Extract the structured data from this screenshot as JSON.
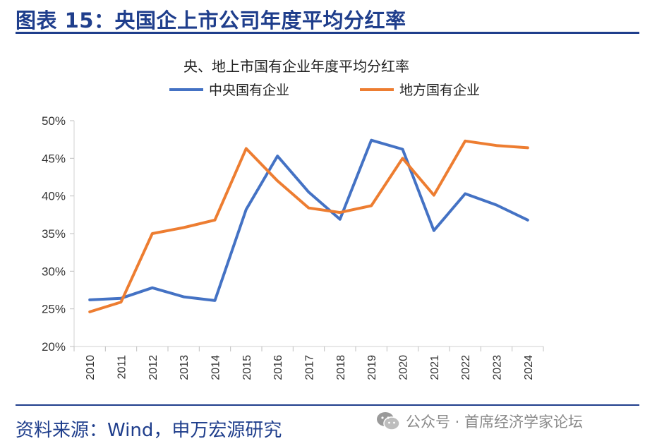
{
  "figure": {
    "title": "图表 15：央国企上市公司年度平均分红率",
    "source": "资料来源：Wind，申万宏源研究",
    "watermark": "公众号 · 首席经济学家论坛",
    "watermark_icon": "wechat-icon"
  },
  "chart_data": {
    "type": "line",
    "title": "央、地上市国有企业年度平均分红率",
    "xlabel": "",
    "ylabel": "",
    "categories": [
      "2010",
      "2011",
      "2012",
      "2013",
      "2014",
      "2015",
      "2016",
      "2017",
      "2018",
      "2019",
      "2020",
      "2021",
      "2022",
      "2023",
      "2024"
    ],
    "ylim": [
      20,
      50
    ],
    "yticks": [
      20,
      25,
      30,
      35,
      40,
      45,
      50
    ],
    "ytick_labels": [
      "20%",
      "25%",
      "30%",
      "35%",
      "40%",
      "45%",
      "50%"
    ],
    "legend_position": "top",
    "grid": false,
    "series": [
      {
        "name": "中央国有企业",
        "color": "#4472c4",
        "values": [
          26.2,
          26.4,
          27.8,
          26.6,
          26.1,
          38.2,
          45.3,
          40.5,
          36.9,
          47.4,
          46.2,
          35.4,
          40.3,
          38.8,
          36.8
        ]
      },
      {
        "name": "地方国有企业",
        "color": "#ed7d31",
        "values": [
          24.6,
          25.9,
          35.0,
          35.8,
          36.8,
          46.3,
          42.0,
          38.4,
          37.8,
          38.7,
          45.0,
          40.1,
          47.3,
          46.7,
          46.4
        ]
      }
    ]
  }
}
